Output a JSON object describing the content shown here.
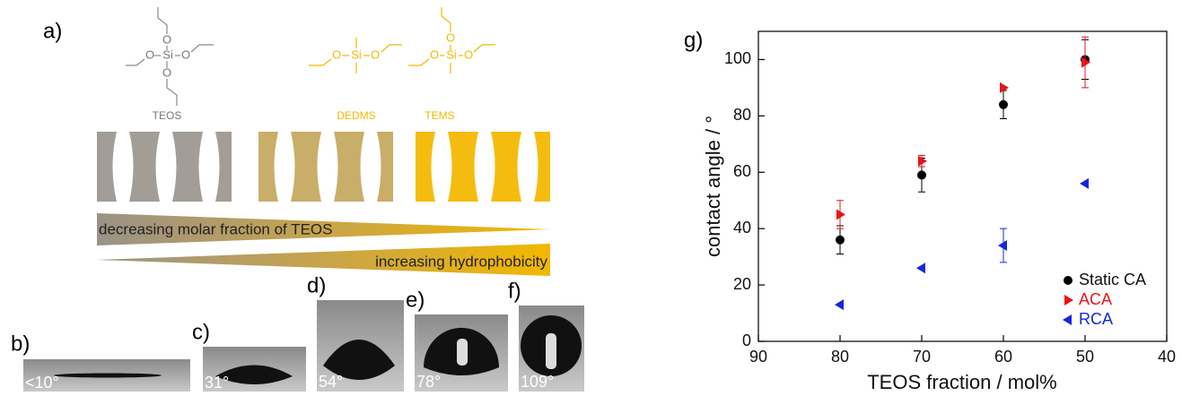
{
  "diagram": {
    "label": "a)",
    "molecules": [
      {
        "name": "TEOS",
        "atoms": [
          "O",
          "O",
          "Si",
          "O",
          "O"
        ]
      },
      {
        "name": "DEDMS",
        "atoms": [
          "O",
          "Si",
          "O"
        ]
      },
      {
        "name": "TEMS",
        "atoms": [
          "O",
          "O",
          "Si",
          "O"
        ]
      }
    ],
    "gradients": [
      "decreasing molar fraction of TEOS",
      "increasing hydrophobicity"
    ]
  },
  "droplets": [
    {
      "label": "b)",
      "angle": "<10°"
    },
    {
      "label": "c)",
      "angle": "31°"
    },
    {
      "label": "d)",
      "angle": "54°"
    },
    {
      "label": "e)",
      "angle": "78°"
    },
    {
      "label": "f)",
      "angle": "109°"
    }
  ],
  "chart_data": {
    "type": "scatter",
    "panel_label": "g)",
    "x_label": "TEOS fraction / mol%",
    "y_label": "contact angle / °",
    "xlim": [
      90,
      40
    ],
    "ylim": [
      0,
      110
    ],
    "xticks": [
      90,
      80,
      70,
      60,
      50,
      40
    ],
    "yticks": [
      0,
      20,
      40,
      60,
      80,
      100
    ],
    "legend_position": "lower right",
    "series": [
      {
        "name": "Static CA",
        "color": "#000000",
        "marker": "circle",
        "x": [
          80,
          70,
          60,
          50
        ],
        "values": [
          36,
          59,
          84,
          100
        ],
        "errors": [
          5,
          6,
          5,
          7
        ]
      },
      {
        "name": "ACA",
        "color": "#e8141b",
        "marker": "triangle-right",
        "x": [
          80,
          70,
          60,
          50
        ],
        "values": [
          45,
          64,
          90,
          99
        ],
        "errors": [
          5,
          2,
          0,
          9
        ]
      },
      {
        "name": "RCA",
        "color": "#1428d8",
        "marker": "triangle-left",
        "x": [
          80,
          70,
          60,
          50
        ],
        "values": [
          13,
          26,
          34,
          56
        ],
        "errors": [
          0,
          0,
          6,
          0
        ]
      }
    ]
  }
}
